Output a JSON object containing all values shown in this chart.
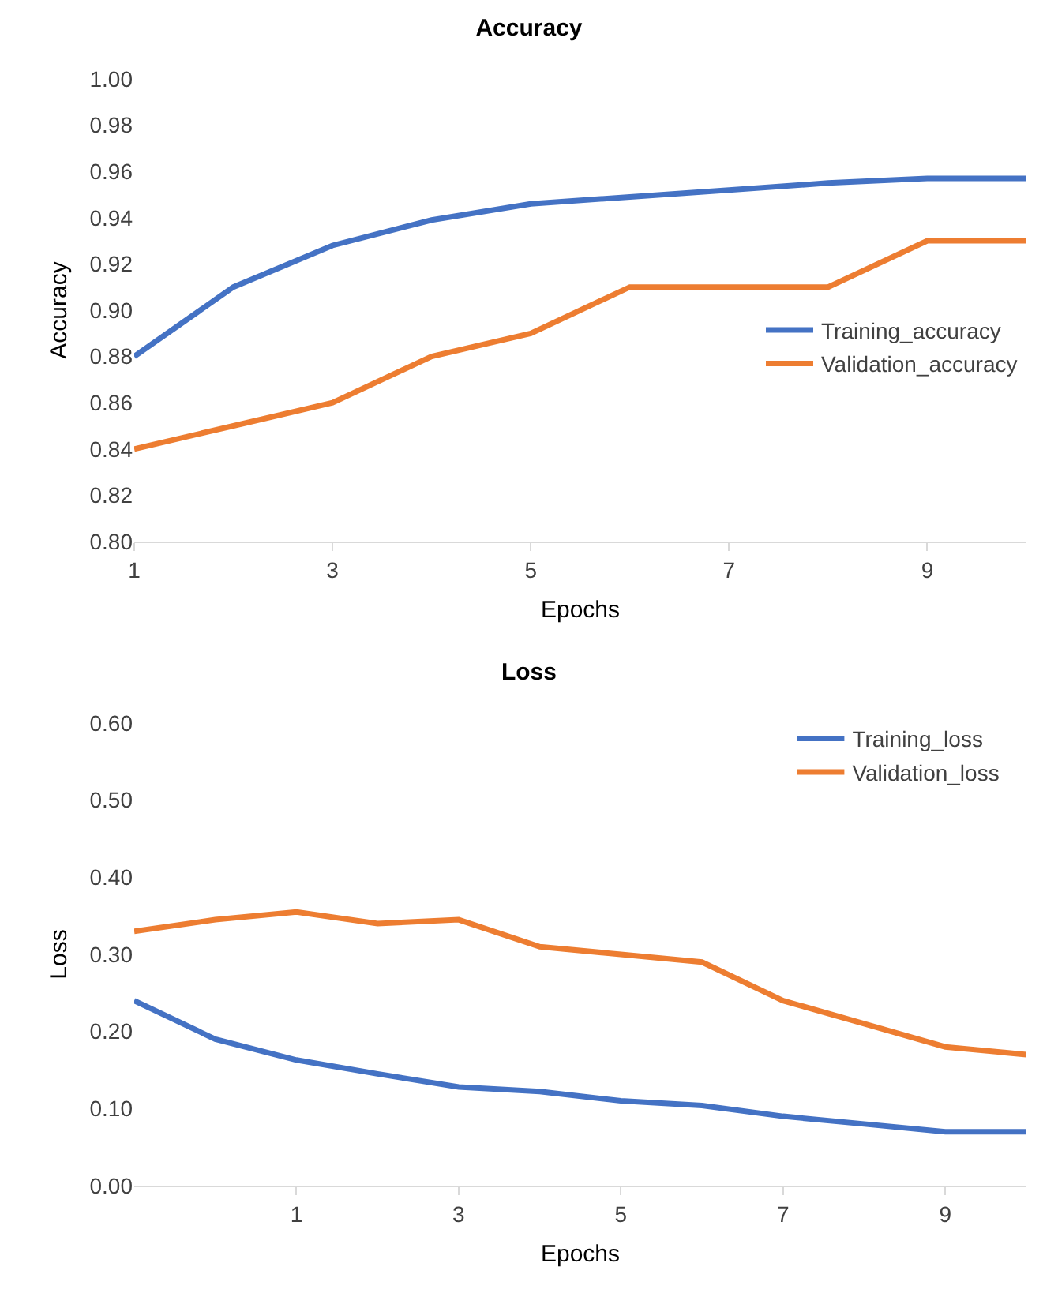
{
  "chart_data": [
    {
      "type": "line",
      "title": "Accuracy",
      "xlabel": "Epochs",
      "ylabel": "Accuracy",
      "x": [
        1,
        2,
        3,
        4,
        5,
        6,
        7,
        8,
        9,
        10
      ],
      "xlim": [
        1,
        10
      ],
      "xticks": [
        1,
        3,
        5,
        7,
        9
      ],
      "ylim": [
        0.8,
        1.0
      ],
      "yticks": [
        {
          "value": 0.8,
          "label": "0.80"
        },
        {
          "value": 0.82,
          "label": "0.82"
        },
        {
          "value": 0.84,
          "label": "0.84"
        },
        {
          "value": 0.86,
          "label": "0.86"
        },
        {
          "value": 0.88,
          "label": "0.88"
        },
        {
          "value": 0.9,
          "label": "0.90"
        },
        {
          "value": 0.92,
          "label": "0.92"
        },
        {
          "value": 0.94,
          "label": "0.94"
        },
        {
          "value": 0.96,
          "label": "0.96"
        },
        {
          "value": 0.98,
          "label": "0.98"
        },
        {
          "value": 1.0,
          "label": "1.00"
        }
      ],
      "grid": false,
      "legend": "right",
      "marker": "none",
      "line_style": "solid",
      "series": [
        {
          "name": "Training_accuracy",
          "color": "#4472c4",
          "values": [
            0.88,
            0.91,
            0.928,
            0.939,
            0.946,
            0.949,
            0.952,
            0.955,
            0.957,
            0.957
          ]
        },
        {
          "name": "Validation_accuracy",
          "color": "#ed7d31",
          "values": [
            0.84,
            0.85,
            0.86,
            0.88,
            0.89,
            0.91,
            0.91,
            0.91,
            0.93,
            0.93
          ]
        }
      ]
    },
    {
      "type": "line",
      "title": "Loss",
      "xlabel": "Epochs",
      "ylabel": "Loss",
      "x": [
        -1,
        0,
        1,
        2,
        3,
        4,
        5,
        6,
        7,
        8,
        9,
        10
      ],
      "xlim": [
        -1,
        10
      ],
      "xticks": [
        1,
        3,
        5,
        7,
        9
      ],
      "ylim": [
        0,
        0.6
      ],
      "yticks": [
        {
          "value": 0,
          "label": "0.00"
        },
        {
          "value": 0.1,
          "label": "0.10"
        },
        {
          "value": 0.2,
          "label": "0.20"
        },
        {
          "value": 0.3,
          "label": "0.30"
        },
        {
          "value": 0.4,
          "label": "0.40"
        },
        {
          "value": 0.5,
          "label": "0.50"
        },
        {
          "value": 0.6,
          "label": "0.60"
        }
      ],
      "grid": false,
      "legend": "top right",
      "marker": "none",
      "line_style": "solid",
      "series": [
        {
          "name": "Training_loss",
          "color": "#4472c4",
          "values": [
            0.24,
            0.19,
            0.163,
            0.145,
            0.128,
            0.122,
            0.11,
            0.104,
            0.09,
            0.08,
            0.07,
            0.07
          ]
        },
        {
          "name": "Validation_loss",
          "color": "#ed7d31",
          "values": [
            0.33,
            0.345,
            0.355,
            0.34,
            0.345,
            0.31,
            0.3,
            0.29,
            0.24,
            0.21,
            0.18,
            0.17
          ]
        }
      ]
    }
  ]
}
